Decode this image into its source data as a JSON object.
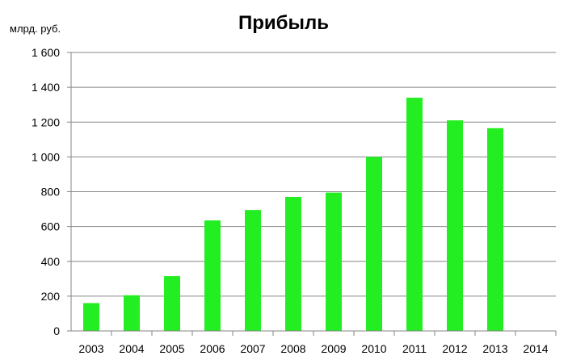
{
  "chart_data": {
    "type": "bar",
    "title": "Прибыль",
    "unit_label": "млрд. руб.",
    "xlabel": "",
    "ylabel": "",
    "categories": [
      "2003",
      "2004",
      "2005",
      "2006",
      "2007",
      "2008",
      "2009",
      "2010",
      "2011",
      "2012",
      "2013",
      "2014"
    ],
    "values": [
      160,
      205,
      315,
      635,
      695,
      770,
      795,
      1000,
      1340,
      1210,
      1165,
      0
    ],
    "ylim": [
      0,
      1600
    ],
    "yticks": [
      0,
      200,
      400,
      600,
      800,
      1000,
      1200,
      1400,
      1600
    ],
    "ytick_labels": [
      "0",
      "200",
      "400",
      "600",
      "800",
      "1 000",
      "1 200",
      "1 400",
      "1 600"
    ],
    "grid": true,
    "legend": "none",
    "bar_color": "#22ee22"
  }
}
